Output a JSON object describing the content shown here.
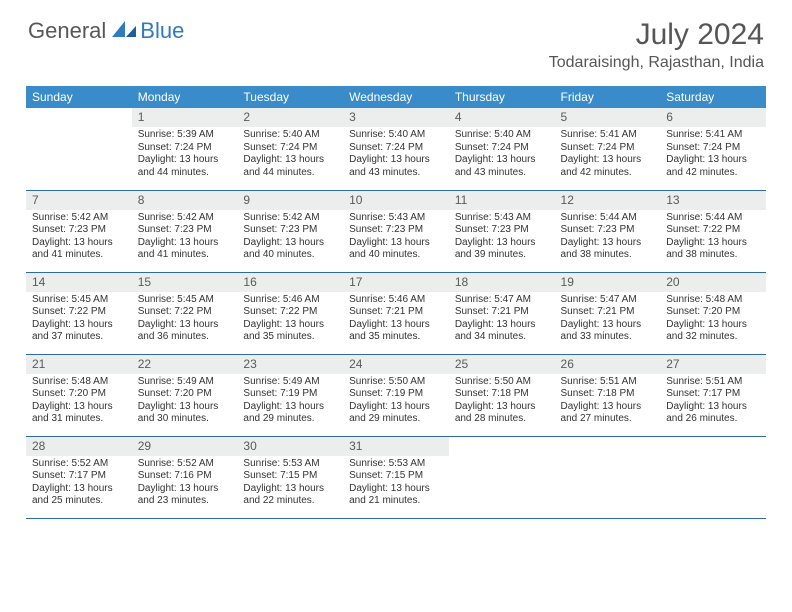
{
  "brand": {
    "general": "General",
    "blue": "Blue"
  },
  "title": "July 2024",
  "location": "Todaraisingh, Rajasthan, India",
  "colors": {
    "header_bg": "#3a8bc9",
    "header_text": "#ffffff",
    "daynum_bg": "#eceded",
    "title_color": "#565656",
    "row_border": "#2f6aa0"
  },
  "weekdays": [
    "Sunday",
    "Monday",
    "Tuesday",
    "Wednesday",
    "Thursday",
    "Friday",
    "Saturday"
  ],
  "layout": {
    "first_weekday_index": 1,
    "days_in_month": 31
  },
  "days": {
    "1": {
      "sunrise": "5:39 AM",
      "sunset": "7:24 PM",
      "daylight": "13 hours and 44 minutes."
    },
    "2": {
      "sunrise": "5:40 AM",
      "sunset": "7:24 PM",
      "daylight": "13 hours and 44 minutes."
    },
    "3": {
      "sunrise": "5:40 AM",
      "sunset": "7:24 PM",
      "daylight": "13 hours and 43 minutes."
    },
    "4": {
      "sunrise": "5:40 AM",
      "sunset": "7:24 PM",
      "daylight": "13 hours and 43 minutes."
    },
    "5": {
      "sunrise": "5:41 AM",
      "sunset": "7:24 PM",
      "daylight": "13 hours and 42 minutes."
    },
    "6": {
      "sunrise": "5:41 AM",
      "sunset": "7:24 PM",
      "daylight": "13 hours and 42 minutes."
    },
    "7": {
      "sunrise": "5:42 AM",
      "sunset": "7:23 PM",
      "daylight": "13 hours and 41 minutes."
    },
    "8": {
      "sunrise": "5:42 AM",
      "sunset": "7:23 PM",
      "daylight": "13 hours and 41 minutes."
    },
    "9": {
      "sunrise": "5:42 AM",
      "sunset": "7:23 PM",
      "daylight": "13 hours and 40 minutes."
    },
    "10": {
      "sunrise": "5:43 AM",
      "sunset": "7:23 PM",
      "daylight": "13 hours and 40 minutes."
    },
    "11": {
      "sunrise": "5:43 AM",
      "sunset": "7:23 PM",
      "daylight": "13 hours and 39 minutes."
    },
    "12": {
      "sunrise": "5:44 AM",
      "sunset": "7:23 PM",
      "daylight": "13 hours and 38 minutes."
    },
    "13": {
      "sunrise": "5:44 AM",
      "sunset": "7:22 PM",
      "daylight": "13 hours and 38 minutes."
    },
    "14": {
      "sunrise": "5:45 AM",
      "sunset": "7:22 PM",
      "daylight": "13 hours and 37 minutes."
    },
    "15": {
      "sunrise": "5:45 AM",
      "sunset": "7:22 PM",
      "daylight": "13 hours and 36 minutes."
    },
    "16": {
      "sunrise": "5:46 AM",
      "sunset": "7:22 PM",
      "daylight": "13 hours and 35 minutes."
    },
    "17": {
      "sunrise": "5:46 AM",
      "sunset": "7:21 PM",
      "daylight": "13 hours and 35 minutes."
    },
    "18": {
      "sunrise": "5:47 AM",
      "sunset": "7:21 PM",
      "daylight": "13 hours and 34 minutes."
    },
    "19": {
      "sunrise": "5:47 AM",
      "sunset": "7:21 PM",
      "daylight": "13 hours and 33 minutes."
    },
    "20": {
      "sunrise": "5:48 AM",
      "sunset": "7:20 PM",
      "daylight": "13 hours and 32 minutes."
    },
    "21": {
      "sunrise": "5:48 AM",
      "sunset": "7:20 PM",
      "daylight": "13 hours and 31 minutes."
    },
    "22": {
      "sunrise": "5:49 AM",
      "sunset": "7:20 PM",
      "daylight": "13 hours and 30 minutes."
    },
    "23": {
      "sunrise": "5:49 AM",
      "sunset": "7:19 PM",
      "daylight": "13 hours and 29 minutes."
    },
    "24": {
      "sunrise": "5:50 AM",
      "sunset": "7:19 PM",
      "daylight": "13 hours and 29 minutes."
    },
    "25": {
      "sunrise": "5:50 AM",
      "sunset": "7:18 PM",
      "daylight": "13 hours and 28 minutes."
    },
    "26": {
      "sunrise": "5:51 AM",
      "sunset": "7:18 PM",
      "daylight": "13 hours and 27 minutes."
    },
    "27": {
      "sunrise": "5:51 AM",
      "sunset": "7:17 PM",
      "daylight": "13 hours and 26 minutes."
    },
    "28": {
      "sunrise": "5:52 AM",
      "sunset": "7:17 PM",
      "daylight": "13 hours and 25 minutes."
    },
    "29": {
      "sunrise": "5:52 AM",
      "sunset": "7:16 PM",
      "daylight": "13 hours and 23 minutes."
    },
    "30": {
      "sunrise": "5:53 AM",
      "sunset": "7:15 PM",
      "daylight": "13 hours and 22 minutes."
    },
    "31": {
      "sunrise": "5:53 AM",
      "sunset": "7:15 PM",
      "daylight": "13 hours and 21 minutes."
    }
  },
  "labels": {
    "sunrise": "Sunrise: ",
    "sunset": "Sunset: ",
    "daylight": "Daylight: "
  }
}
